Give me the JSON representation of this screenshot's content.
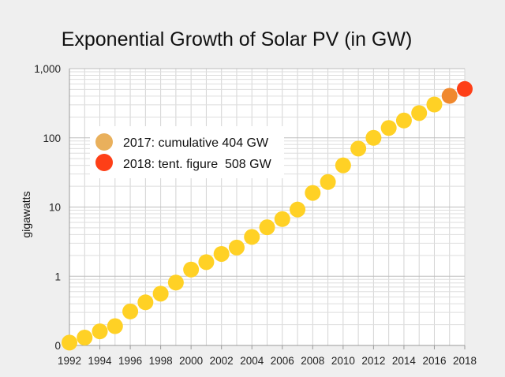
{
  "chart_data": {
    "type": "scatter",
    "title": "Exponential Growth of Solar PV (in GW)",
    "xlabel": "",
    "ylabel": "gigawatts",
    "xlim": [
      1992,
      2018
    ],
    "ylim": [
      0.1,
      1000
    ],
    "y_scale": "log",
    "grid": true,
    "x_ticks": [
      "1992",
      "1994",
      "1996",
      "1998",
      "2000",
      "2002",
      "2004",
      "2006",
      "2008",
      "2010",
      "2012",
      "2014",
      "2016",
      "2018"
    ],
    "y_ticks": [
      {
        "value": 0.1,
        "label": "0"
      },
      {
        "value": 1,
        "label": "1"
      },
      {
        "value": 10,
        "label": "10"
      },
      {
        "value": 100,
        "label": "100"
      },
      {
        "value": 1000,
        "label": "1,000"
      }
    ],
    "series": [
      {
        "color": "#ffd125",
        "x": [
          1992,
          1993,
          1994,
          1995,
          1996,
          1997,
          1998,
          1999,
          2000,
          2001,
          2002,
          2003,
          2004,
          2005,
          2006,
          2007,
          2008,
          2009,
          2010,
          2011,
          2012,
          2013,
          2014,
          2015,
          2016
        ],
        "values": [
          0.11,
          0.13,
          0.16,
          0.19,
          0.31,
          0.42,
          0.56,
          0.81,
          1.25,
          1.6,
          2.1,
          2.6,
          3.7,
          5.1,
          6.7,
          9.2,
          16,
          23,
          40,
          70,
          100,
          139,
          178,
          228,
          303
        ]
      },
      {
        "name": "2017: cumulative 404 GW",
        "color": "#f0882e",
        "legend_color": "#e9b05c",
        "x": [
          2017
        ],
        "values": [
          404
        ]
      },
      {
        "name": "2018: tent. figure  508 GW",
        "color": "#fe3f17",
        "legend_color": "#fe3f17",
        "x": [
          2018
        ],
        "values": [
          508
        ]
      }
    ],
    "legend": {
      "position": "left",
      "items": [
        {
          "label": "2017: cumulative 404 GW",
          "color": "#e9b05c"
        },
        {
          "label": "2018: tent. figure  508 GW",
          "color": "#fe3f17"
        }
      ]
    }
  }
}
